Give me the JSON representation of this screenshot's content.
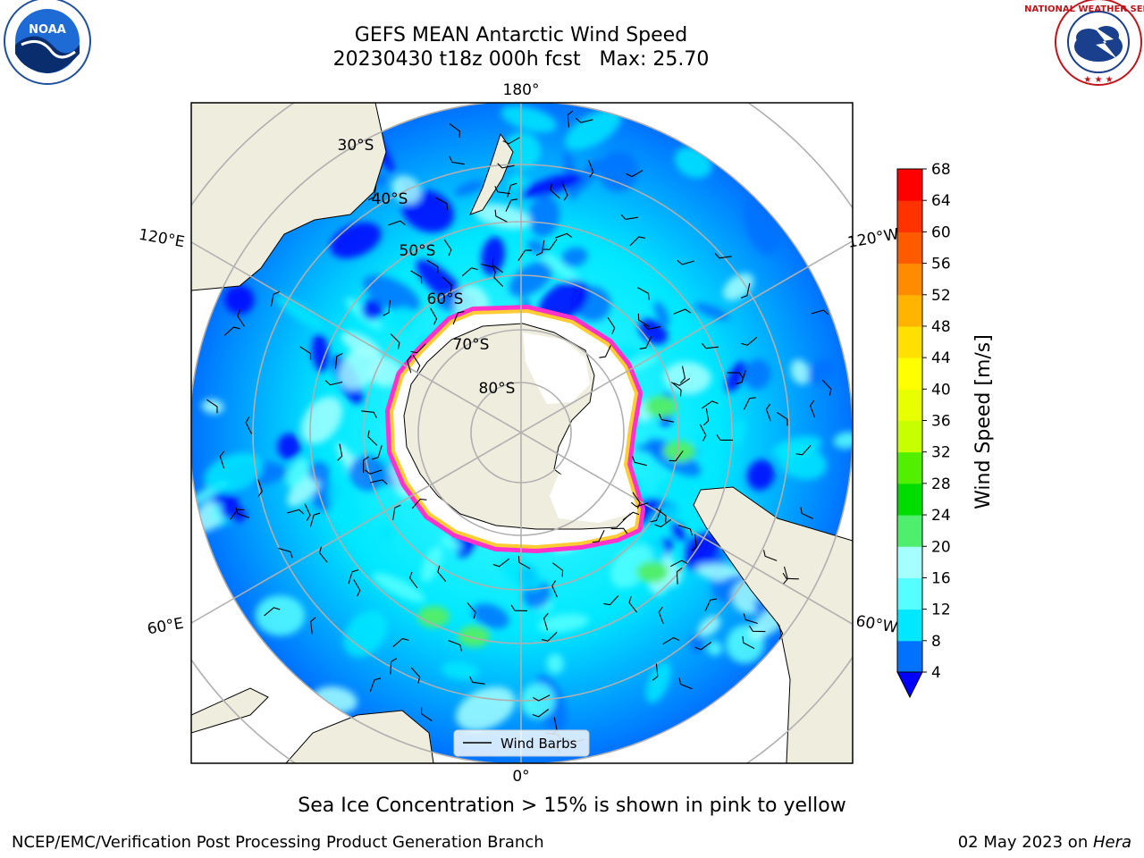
{
  "header": {
    "title_line1": "GEFS MEAN Antarctic Wind Speed",
    "title_line2": "20230430 t18z 000h fcst   Max: 25.70"
  },
  "logos": {
    "left": {
      "icon": "noaa-logo-icon",
      "text": "NOAA"
    },
    "right": {
      "icon": "national-weather-service-logo-icon",
      "text": "NATIONAL WEATHER SERVICE"
    }
  },
  "map": {
    "projection": "south-polar-stereographic",
    "longitude_labels": [
      "180°",
      "120°E",
      "120°W",
      "60°E",
      "60°W",
      "0°"
    ],
    "latitude_labels": [
      "30°S",
      "40°S",
      "50°S",
      "60°S",
      "70°S",
      "80°S"
    ],
    "legend_label": "Wind Barbs"
  },
  "colors": {
    "land": "#efedde",
    "sea_ice_low": "#ff33cc",
    "sea_ice_high": "#ffcc33",
    "grid": "#b0b0b0"
  },
  "chart_data": {
    "type": "heatmap",
    "title": "GEFS MEAN Antarctic Wind Speed",
    "subtitle": "20230430 t18z 000h fcst   Max: 25.70",
    "max_value": 25.7,
    "colorbar": {
      "label": "Wind Speed [m/s]",
      "ticks": [
        4,
        8,
        12,
        16,
        20,
        24,
        28,
        32,
        36,
        40,
        44,
        48,
        52,
        56,
        60,
        64,
        68
      ],
      "levels": [
        4,
        8,
        12,
        16,
        20,
        24,
        28,
        32,
        36,
        40,
        44,
        48,
        52,
        56,
        60,
        64,
        68
      ],
      "colors": [
        "#0072ff",
        "#00e8ff",
        "#55ffff",
        "#a5ffff",
        "#4fee6d",
        "#00dc00",
        "#52f000",
        "#c8ff00",
        "#e8ff00",
        "#ffff00",
        "#ffe000",
        "#ffb400",
        "#ff8c00",
        "#ff5a00",
        "#ff3200",
        "#ff0000"
      ],
      "extend_below_color": "#0000ff",
      "orientation": "vertical"
    }
  },
  "footer": {
    "caption": "Sea Ice Concentration > 15% is shown in pink to yellow",
    "credit": "NCEP/EMC/Verification Post Processing Product Generation Branch",
    "date_prefix": "02 May 2023 on ",
    "date_host": "Hera"
  }
}
